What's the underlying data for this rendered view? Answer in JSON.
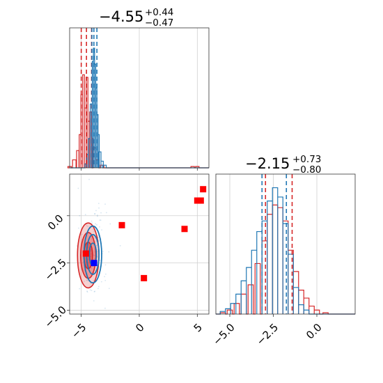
{
  "chart_data": {
    "type": "corner",
    "colors": {
      "blue": "#1f77b4",
      "red": "#d62728",
      "marker_red": "#ff0000",
      "marker_blue": "#0000ff"
    },
    "param_titles": [
      {
        "value": "−4.55",
        "upper": "+0.44",
        "lower": "−0.47"
      },
      {
        "value": "−2.15",
        "upper": "+0.73",
        "lower": "−0.80"
      }
    ],
    "xlim_1": [
      -6.0,
      6.0
    ],
    "xlim_2": [
      -5.8,
      2.2
    ],
    "ylim_2": [
      -5.2,
      2.2
    ],
    "x1_ticks": [
      -5,
      0,
      5
    ],
    "x1_tick_labels": [
      "−5",
      "0",
      "5"
    ],
    "x2_ticks": [
      -5.0,
      -2.5,
      0.0
    ],
    "x2_tick_labels": [
      "−5.0",
      "−2.5",
      "0.0"
    ],
    "y2_ticks": [
      0.0,
      -2.5,
      -5.0
    ],
    "y2_tick_labels": [
      "0.0",
      "−2.5",
      "−5.0"
    ],
    "hist1": {
      "blue_quantiles": [
        -4.08,
        -3.91,
        -3.65
      ],
      "red_quantiles": [
        -5.0,
        -4.55,
        -4.11
      ],
      "blue_bins": [
        [
          -4.6,
          0.03
        ],
        [
          -4.45,
          0.1
        ],
        [
          -4.3,
          0.22
        ],
        [
          -4.15,
          0.48
        ],
        [
          -4.0,
          0.8
        ],
        [
          -3.9,
          0.9
        ],
        [
          -3.8,
          0.78
        ],
        [
          -3.7,
          0.6
        ],
        [
          -3.6,
          0.4
        ],
        [
          -3.5,
          0.25
        ],
        [
          -3.4,
          0.12
        ],
        [
          -3.2,
          0.05
        ],
        [
          -3.0,
          0.02
        ]
      ],
      "red_bins": [
        [
          -6.0,
          0.01
        ],
        [
          -5.6,
          0.06
        ],
        [
          -5.3,
          0.13
        ],
        [
          -5.1,
          0.25
        ],
        [
          -4.95,
          0.55
        ],
        [
          -4.8,
          0.7
        ],
        [
          -4.65,
          0.45
        ],
        [
          -4.5,
          0.68
        ],
        [
          -4.35,
          0.35
        ],
        [
          -4.2,
          0.42
        ],
        [
          -4.05,
          0.22
        ],
        [
          -3.9,
          0.15
        ],
        [
          -3.6,
          0.06
        ],
        [
          -3.2,
          0.02
        ],
        [
          4.6,
          0.01
        ],
        [
          5.0,
          0.01
        ]
      ]
    },
    "scatter_markers": [
      {
        "x": 5.5,
        "y": 1.4,
        "color": "red"
      },
      {
        "x": 5.0,
        "y": 0.8,
        "color": "red"
      },
      {
        "x": 5.3,
        "y": 0.8,
        "color": "red"
      },
      {
        "x": -1.5,
        "y": -0.5,
        "color": "red"
      },
      {
        "x": 3.9,
        "y": -0.7,
        "color": "red"
      },
      {
        "x": 0.4,
        "y": -3.3,
        "color": "red"
      },
      {
        "x": -4.6,
        "y": -2.0,
        "color": "red"
      },
      {
        "x": -3.9,
        "y": -2.5,
        "color": "blue"
      }
    ],
    "contours": {
      "red_center": [
        -4.4,
        -2.1
      ],
      "red_sigma": [
        0.42,
        0.78
      ],
      "blue_center": [
        -4.0,
        -2.05
      ],
      "blue_sigma": [
        0.38,
        0.75
      ],
      "levels": [
        0.39,
        0.86,
        1.2
      ]
    },
    "hist2": {
      "blue_quantiles": [
        -3.15,
        -1.75
      ],
      "red_quantiles": [
        -2.95,
        -1.42
      ],
      "blue_bins": [
        [
          -5.4,
          0.02
        ],
        [
          -5.1,
          0.04
        ],
        [
          -4.8,
          0.08
        ],
        [
          -4.5,
          0.15
        ],
        [
          -4.2,
          0.25
        ],
        [
          -3.9,
          0.35
        ],
        [
          -3.6,
          0.48
        ],
        [
          -3.3,
          0.62
        ],
        [
          -3.0,
          0.7
        ],
        [
          -2.7,
          0.85
        ],
        [
          -2.4,
          0.95
        ],
        [
          -2.1,
          0.88
        ],
        [
          -1.8,
          0.68
        ],
        [
          -1.5,
          0.45
        ],
        [
          -1.2,
          0.2
        ],
        [
          -0.9,
          0.07
        ],
        [
          -0.6,
          0.03
        ]
      ],
      "red_bins": [
        [
          -5.4,
          0.01
        ],
        [
          -5.0,
          0.03
        ],
        [
          -4.6,
          0.08
        ],
        [
          -4.2,
          0.15
        ],
        [
          -3.8,
          0.22
        ],
        [
          -3.4,
          0.38
        ],
        [
          -3.0,
          0.55
        ],
        [
          -2.7,
          0.75
        ],
        [
          -2.4,
          0.82
        ],
        [
          -2.1,
          0.8
        ],
        [
          -1.8,
          0.7
        ],
        [
          -1.5,
          0.48
        ],
        [
          -1.2,
          0.32
        ],
        [
          -0.9,
          0.18
        ],
        [
          -0.6,
          0.12
        ],
        [
          -0.3,
          0.06
        ],
        [
          0.0,
          0.03
        ],
        [
          0.5,
          0.01
        ]
      ]
    }
  }
}
